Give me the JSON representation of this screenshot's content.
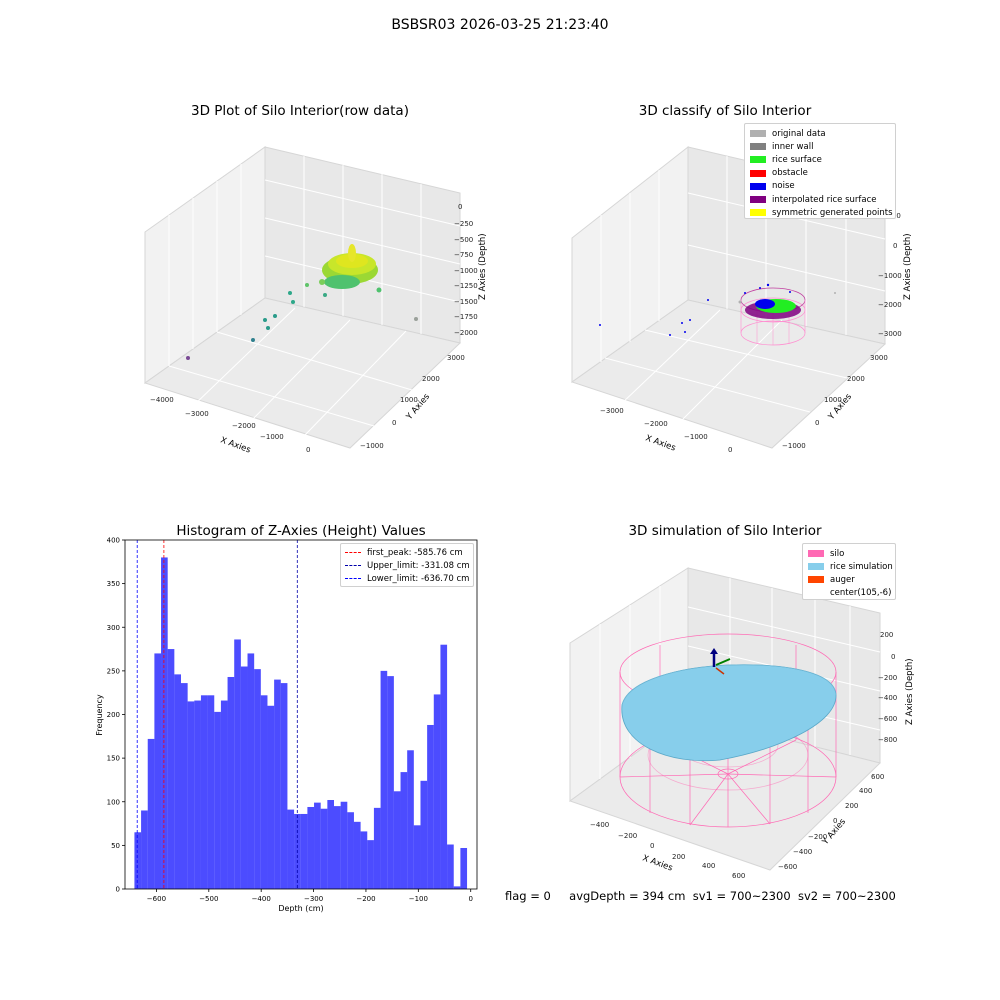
{
  "suptitle": "BSBSR03 2026-03-25 21:23:40",
  "panels": {
    "raw": {
      "title": "3D Plot of Silo Interior(row data)",
      "xlabel": "X Axies",
      "ylabel": "Y Axies",
      "zlabel": "Z Axies (Depth)",
      "xticks": [
        "−4000",
        "−3000",
        "−2000",
        "−1000",
        "0"
      ],
      "yticks": [
        "−1000",
        "0",
        "1000",
        "2000",
        "3000"
      ],
      "zticks": [
        "0",
        "−250",
        "−500",
        "−750",
        "−1000",
        "−1250",
        "−1500",
        "−1750",
        "−2000"
      ]
    },
    "classify": {
      "title": "3D classify of Silo Interior",
      "xlabel": "X Axies",
      "ylabel": "Y Axies",
      "zlabel": "Z Axies (Depth)",
      "xticks": [
        "−3000",
        "−2000",
        "−1000",
        "0"
      ],
      "yticks": [
        "−1000",
        "0",
        "1000",
        "2000",
        "3000"
      ],
      "zticks": [
        "1000",
        "0",
        "−1000",
        "−2000",
        "−3000"
      ],
      "legend": [
        {
          "label": "original data",
          "color": "#b0b0b0"
        },
        {
          "label": "inner wall",
          "color": "#808080"
        },
        {
          "label": "rice surface",
          "color": "#22ee22"
        },
        {
          "label": "obstacle",
          "color": "#ff0000"
        },
        {
          "label": "noise",
          "color": "#0000ee"
        },
        {
          "label": "interpolated rice surface",
          "color": "#800080"
        },
        {
          "label": "symmetric generated points",
          "color": "#ffff00"
        }
      ]
    },
    "simulation": {
      "title": "3D simulation of Silo Interior",
      "xlabel": "X Axies",
      "ylabel": "Y Axies",
      "zlabel": "Z Axies (Depth)",
      "xticks": [
        "−400",
        "−200",
        "0",
        "200",
        "400",
        "600"
      ],
      "yticks": [
        "−600",
        "−400",
        "−200",
        "0",
        "200",
        "400",
        "600"
      ],
      "zticks": [
        "200",
        "0",
        "−200",
        "−400",
        "−600",
        "−800"
      ],
      "legend": [
        {
          "label": "silo",
          "color": "#ff69b4"
        },
        {
          "label": "rice simulation",
          "color": "#87ceeb"
        },
        {
          "label": "auger",
          "color": "#ff4500"
        },
        {
          "label": "center(105,-6)",
          "color": "#ffffff"
        }
      ]
    }
  },
  "chart_data": {
    "type": "bar",
    "title": "Histogram of Z-Axies (Height) Values",
    "xlabel": "Depth (cm)",
    "ylabel": "Frequency",
    "xlim": [
      -660,
      12
    ],
    "ylim": [
      0,
      400
    ],
    "xticks": [
      "−600",
      "−500",
      "−400",
      "−300",
      "−200",
      "−100",
      "0"
    ],
    "yticks": [
      "0",
      "50",
      "100",
      "150",
      "200",
      "250",
      "300",
      "350",
      "400"
    ],
    "bin_start": -642,
    "bin_width": 12.7,
    "values": [
      65,
      90,
      172,
      270,
      380,
      275,
      246,
      236,
      215,
      216,
      222,
      222,
      203,
      216,
      243,
      286,
      255,
      270,
      252,
      222,
      210,
      240,
      236,
      91,
      86,
      86,
      94,
      99,
      92,
      102,
      95,
      100,
      88,
      77,
      66,
      56,
      93,
      250,
      244,
      112,
      134,
      159,
      73,
      124,
      188,
      223,
      280,
      51,
      3,
      47
    ],
    "bar_color": "#0000ff",
    "bar_alpha": 0.7,
    "vlines": [
      {
        "label": "first_peak: -585.76 cm",
        "x": -585.76,
        "color": "#ff0000"
      },
      {
        "label": "Upper_limit: -331.08 cm",
        "x": -331.08,
        "color": "#0000aa"
      },
      {
        "label": "Lower_limit: -636.70 cm",
        "x": -636.7,
        "color": "#0000ff"
      }
    ],
    "legend_position": "top-right",
    "grid": false
  },
  "status": {
    "flag": "flag = 0",
    "avg_depth": "avgDepth = 394 cm",
    "sv1": "sv1 = 700~2300",
    "sv2": "sv2 = 700~2300"
  }
}
